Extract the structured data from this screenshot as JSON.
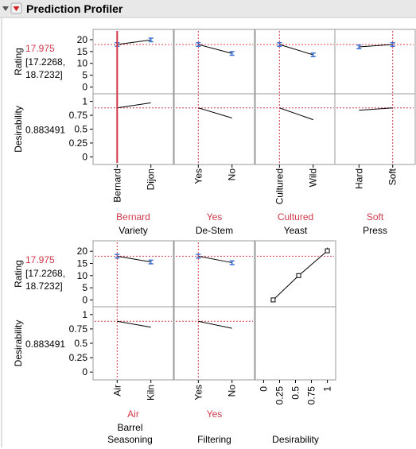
{
  "header": {
    "title": "Prediction Profiler",
    "disclosure_icon": "disclosure-triangle-icon",
    "menu_icon": "red-triangle-menu-icon"
  },
  "colors": {
    "current_value": "#d0384a",
    "ci_bar": "#3a6fd8",
    "frame": "#9a9a9a",
    "header_bg": "#e8e8e8"
  },
  "rows": [
    {
      "rating": {
        "label": "Rating",
        "value": "17.975",
        "ci_line1": "[17.2268,",
        "ci_line2": "18.7232]",
        "ticks": [
          "0",
          "5",
          "10",
          "15",
          "20"
        ],
        "range": [
          -1.5,
          23
        ]
      },
      "desirability": {
        "label": "Desirability",
        "value": "0.883491",
        "ticks": [
          "0",
          "0.25",
          "0.5",
          "0.75",
          "1"
        ],
        "range": [
          -0.08,
          1.08
        ]
      },
      "factors": [
        {
          "name": "Variety",
          "current": "Bernard",
          "levels": [
            "Bernard",
            "Dijon"
          ],
          "rating": [
            17.975,
            19.9
          ],
          "rating_err": [
            0.75,
            0.75
          ],
          "desirability": [
            0.883491,
            0.975
          ]
        },
        {
          "name": "De-Stem",
          "current": "Yes",
          "levels": [
            "Yes",
            "No"
          ],
          "rating": [
            17.975,
            14.2
          ],
          "rating_err": [
            0.75,
            0.75
          ],
          "desirability": [
            0.883491,
            0.7
          ]
        },
        {
          "name": "Yeast",
          "current": "Cultured",
          "levels": [
            "Cultured",
            "Wild"
          ],
          "rating": [
            17.975,
            13.6
          ],
          "rating_err": [
            0.75,
            0.75
          ],
          "desirability": [
            0.883491,
            0.67
          ]
        },
        {
          "name": "Press",
          "current": "Soft",
          "levels": [
            "Hard",
            "Soft"
          ],
          "rating": [
            16.95,
            17.975
          ],
          "rating_err": [
            0.75,
            0.75
          ],
          "desirability": [
            0.84,
            0.883491
          ]
        }
      ]
    },
    {
      "rating": {
        "label": "Rating",
        "value": "17.975",
        "ci_line1": "[17.2268,",
        "ci_line2": "18.7232]",
        "ticks": [
          "0",
          "5",
          "10",
          "15",
          "20"
        ],
        "range": [
          -1.5,
          23
        ]
      },
      "desirability": {
        "label": "Desirability",
        "value": "0.883491",
        "ticks": [
          "0",
          "0.25",
          "0.5",
          "0.75",
          "1"
        ],
        "range": [
          -0.08,
          1.08
        ]
      },
      "factors": [
        {
          "name": "Barrel Seasoning",
          "name_line1": "Barrel",
          "name_line2": "Seasoning",
          "current": "Air",
          "levels": [
            "Air",
            "Kiln"
          ],
          "rating": [
            17.975,
            15.6
          ],
          "rating_err": [
            0.75,
            0.75
          ],
          "desirability": [
            0.883491,
            0.78
          ]
        },
        {
          "name": "Filtering",
          "current": "Yes",
          "levels": [
            "Yes",
            "No"
          ],
          "rating": [
            17.975,
            15.3
          ],
          "rating_err": [
            0.75,
            0.75
          ],
          "desirability": [
            0.883491,
            0.76
          ]
        },
        {
          "name": "Desirability",
          "type": "desirability_function",
          "x_ticks": [
            "0",
            "0.25",
            "0.5",
            "0.75",
            "1"
          ],
          "x_range": [
            -0.08,
            1.08
          ],
          "curve_x": [
            0.15,
            0.55,
            1.0
          ],
          "curve_y": [
            0,
            10,
            20.2
          ],
          "err_top": 21.5
        }
      ]
    }
  ]
}
